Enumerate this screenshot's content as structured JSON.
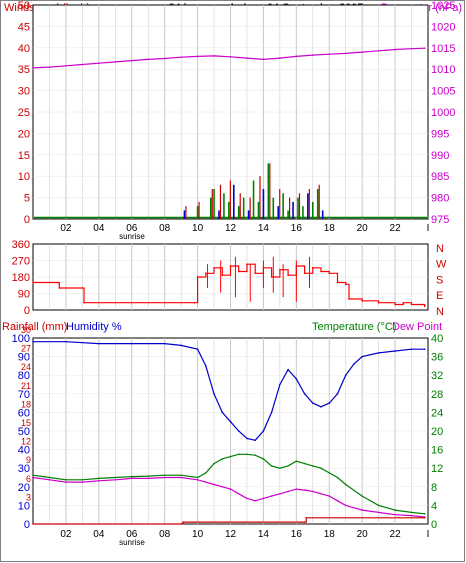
{
  "colors": {
    "windspeed": "#cc0000",
    "gust": "#cc0000",
    "windspeed_bars_green": "#008000",
    "windspeed_bars_blue": "#0000cc",
    "barometer": "#cc00cc",
    "direction": "#ff0000",
    "humidity": "#0000cc",
    "temperature": "#008000",
    "dewpoint": "#cc00cc",
    "rainfall": "#cc0000",
    "grid": "#c8c8c8"
  },
  "header": {
    "left_label": "Windspeed (kmh)",
    "title": "24 hour graph day : 04 September 2007",
    "right_label": "Barometer (hPa)"
  },
  "bottom_header": {
    "rainfall_label": "Rainfall (mm)",
    "humidity_label": "Humidity %",
    "temperature_label": "Temperature (°C)",
    "dewpoint_label": "Dew Point"
  },
  "direction_labels": [
    "N",
    "W",
    "S",
    "E",
    "N"
  ],
  "sunrise_label": "sunrise",
  "chart_data": [
    {
      "type": "line",
      "title": "24 hour graph day : 04 September 2007",
      "ylabel": "Windspeed (kmh)",
      "y2label": "Barometer (hPa)",
      "ylim": [
        0,
        50
      ],
      "y2lim": [
        975,
        1025
      ],
      "y_ticks": [
        "0",
        "5",
        "10",
        "15",
        "20",
        "25",
        "30",
        "35",
        "40",
        "45",
        "50"
      ],
      "y2_ticks": [
        "975",
        "980",
        "985",
        "990",
        "995",
        "1000",
        "1005",
        "1010",
        "1015",
        "1020",
        "1025"
      ],
      "x_ticks": [
        "02",
        "04",
        "06",
        "08",
        "10",
        "12",
        "14",
        "16",
        "18",
        "20",
        "22",
        "I"
      ],
      "xlim": [
        0,
        24
      ],
      "series": [
        {
          "name": "Barometer (hPa)",
          "axis": "right",
          "x": [
            0,
            1,
            2,
            3,
            4,
            5,
            6,
            7,
            8,
            9,
            10,
            11,
            12,
            13,
            14,
            15,
            16,
            17,
            18,
            19,
            20,
            21,
            22,
            23,
            23.8
          ],
          "y": [
            1010.3,
            1010.5,
            1010.8,
            1011.1,
            1011.4,
            1011.7,
            1012.0,
            1012.3,
            1012.5,
            1012.8,
            1013.0,
            1013.1,
            1012.9,
            1012.6,
            1012.3,
            1012.6,
            1013.0,
            1013.3,
            1013.5,
            1013.7,
            1014.0,
            1014.3,
            1014.6,
            1014.8,
            1014.9
          ]
        },
        {
          "name": "Windspeed",
          "axis": "left",
          "x": [
            9.2,
            9.5,
            10.0,
            10.4,
            10.8,
            11.0,
            11.3,
            11.6,
            11.9,
            12.2,
            12.5,
            12.8,
            13.1,
            13.4,
            13.7,
            14.0,
            14.3,
            14.6,
            14.9,
            15.2,
            15.5,
            15.8,
            16.1,
            16.4,
            16.7,
            17.0,
            17.3,
            17.6
          ],
          "y": [
            2,
            0,
            3,
            0,
            5,
            7,
            2,
            6,
            4,
            8,
            3,
            5,
            2,
            9,
            4,
            7,
            13,
            5,
            3,
            6,
            2,
            4,
            5,
            3,
            6,
            4,
            7,
            2
          ]
        },
        {
          "name": "Gust",
          "axis": "left",
          "x": [
            9.2,
            10.0,
            10.8,
            11.3,
            11.9,
            12.5,
            13.1,
            13.7,
            14.3,
            14.9,
            15.5,
            16.1,
            16.7,
            17.3
          ],
          "y": [
            3,
            4,
            7,
            8,
            9,
            6,
            5,
            10,
            13,
            7,
            5,
            6,
            7,
            8
          ]
        }
      ]
    },
    {
      "type": "line",
      "ylabel": "Wind direction",
      "ylim": [
        0,
        360
      ],
      "y_ticks": [
        "0",
        "90",
        "180",
        "270",
        "360"
      ],
      "x_ticks": [
        "02",
        "04",
        "06",
        "08",
        "10",
        "12",
        "14",
        "16",
        "18",
        "20",
        "22",
        "I"
      ],
      "xlim": [
        0,
        24
      ],
      "series": [
        {
          "name": "Direction",
          "x": [
            0,
            1.5,
            1.6,
            3,
            3.1,
            9.8,
            10,
            10.5,
            11,
            11.5,
            12,
            12.5,
            13,
            13.5,
            14,
            14.5,
            15,
            15.5,
            16,
            16.5,
            17,
            17.5,
            18,
            18.5,
            19,
            19.2,
            20,
            21,
            22,
            22.5,
            23,
            23.8
          ],
          "y": [
            150,
            150,
            120,
            120,
            40,
            40,
            180,
            200,
            230,
            190,
            240,
            210,
            250,
            200,
            230,
            180,
            220,
            190,
            240,
            200,
            230,
            210,
            200,
            150,
            140,
            60,
            50,
            40,
            30,
            40,
            30,
            20
          ]
        }
      ]
    },
    {
      "type": "line",
      "ylabel": "Rainfall (mm) / Humidity %",
      "y2label": "Temperature (°C) / Dew Point",
      "ylim": [
        0,
        100
      ],
      "y2lim": [
        0,
        40
      ],
      "y_ticks": [
        "0",
        "10",
        "20",
        "30",
        "40",
        "50",
        "60",
        "70",
        "80",
        "90",
        "100"
      ],
      "y_ticks_rain": [
        "0",
        "3",
        "6",
        "9",
        "12",
        "15",
        "18",
        "21",
        "24",
        "27",
        "30"
      ],
      "y2_ticks": [
        "0",
        "4",
        "8",
        "12",
        "16",
        "20",
        "24",
        "28",
        "32",
        "36",
        "40"
      ],
      "x_ticks": [
        "02",
        "04",
        "06",
        "08",
        "10",
        "12",
        "14",
        "16",
        "18",
        "20",
        "22",
        "I"
      ],
      "xlim": [
        0,
        24
      ],
      "series": [
        {
          "name": "Humidity %",
          "axis": "left",
          "x": [
            0,
            2,
            4,
            6,
            8,
            9,
            10,
            10.5,
            11,
            11.5,
            12,
            12.5,
            13,
            13.5,
            14,
            14.5,
            15,
            15.5,
            16,
            16.5,
            17,
            17.5,
            18,
            18.5,
            19,
            19.5,
            20,
            21,
            22,
            23,
            23.8
          ],
          "y": [
            98,
            98,
            97,
            97,
            97,
            96,
            94,
            85,
            70,
            60,
            55,
            50,
            46,
            45,
            50,
            60,
            75,
            83,
            78,
            70,
            65,
            63,
            65,
            70,
            80,
            86,
            90,
            92,
            93,
            94,
            94
          ]
        },
        {
          "name": "Temperature (°C)",
          "axis": "right",
          "x": [
            0,
            1,
            2,
            3,
            4,
            5,
            6,
            7,
            8,
            9,
            10,
            10.5,
            11,
            11.5,
            12,
            12.5,
            13,
            13.5,
            14,
            14.5,
            15,
            15.5,
            16,
            16.5,
            17,
            17.5,
            18,
            18.5,
            19,
            20,
            21,
            22,
            23,
            23.8
          ],
          "y": [
            10.5,
            10,
            9.5,
            9.5,
            9.8,
            10,
            10.2,
            10.3,
            10.5,
            10.5,
            10,
            11,
            13,
            14,
            14.5,
            15,
            15,
            14.8,
            14,
            12.5,
            12,
            12.5,
            13.5,
            13,
            12.5,
            12,
            11,
            10,
            8.5,
            6,
            4,
            3,
            2.5,
            2.2
          ]
        },
        {
          "name": "Dew Point",
          "axis": "right",
          "x": [
            0,
            1,
            2,
            3,
            4,
            5,
            6,
            7,
            8,
            9,
            10,
            10.5,
            11,
            11.5,
            12,
            12.5,
            13,
            13.5,
            14,
            14.5,
            15,
            15.5,
            16,
            16.5,
            17,
            17.5,
            18,
            18.5,
            19,
            20,
            21,
            22,
            23,
            23.8
          ],
          "y": [
            10,
            9.5,
            9,
            9,
            9.3,
            9.5,
            9.8,
            9.8,
            10,
            10,
            9.5,
            9,
            8.5,
            8,
            7.5,
            6.5,
            5.5,
            5,
            5.5,
            6,
            6.5,
            7,
            7.5,
            7.3,
            7,
            6.5,
            6,
            5,
            4,
            3,
            2.5,
            2,
            1.8,
            1.5
          ]
        },
        {
          "name": "Rainfall (mm)",
          "axis": "left_rain",
          "x": [
            0,
            9.0,
            9.1,
            16.5,
            16.6,
            23.8
          ],
          "y": [
            0,
            0,
            0.3,
            0.3,
            1.0,
            1.0
          ]
        }
      ]
    }
  ]
}
